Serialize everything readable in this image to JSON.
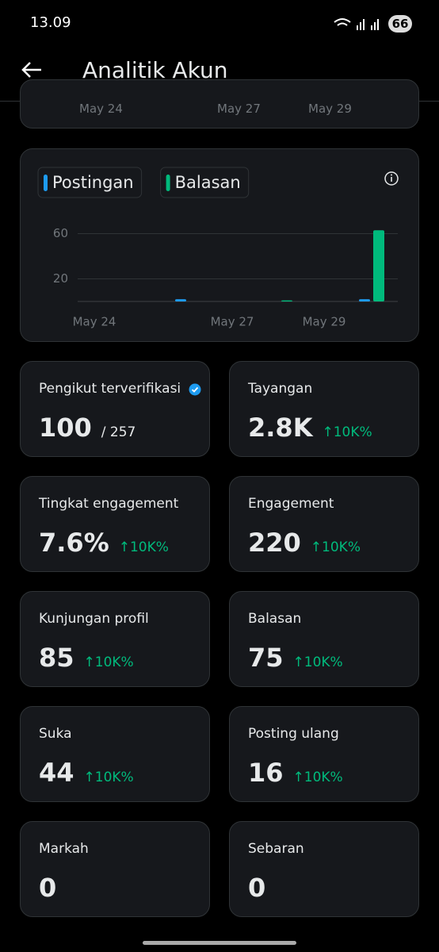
{
  "status_bar": {
    "time": "13.09",
    "battery": "66"
  },
  "header": {
    "title": "Analitik Akun"
  },
  "previous_chart": {
    "x_labels": [
      "May 24",
      "May 27",
      "May 29"
    ]
  },
  "chart_data": {
    "type": "bar",
    "categories": [
      "May 24",
      null,
      null,
      "May 27",
      null,
      "May 29",
      null
    ],
    "series": [
      {
        "name": "Postingan",
        "color": "#1d9bf0",
        "values": [
          0,
          0,
          2,
          0,
          0,
          0,
          2
        ]
      },
      {
        "name": "Balasan",
        "color": "#00ba7c",
        "values": [
          0,
          0,
          0,
          0,
          1,
          0,
          63
        ]
      }
    ],
    "ylim": [
      0,
      66
    ],
    "yticks": [
      20,
      60
    ],
    "grid": true
  },
  "stats": [
    {
      "label": "Pengikut terverifikasi",
      "value": "100",
      "total": "/ 257"
    },
    {
      "label": "Tayangan",
      "value": "2.8K",
      "change": "↑10K%"
    },
    {
      "label": "Tingkat engagement",
      "value": "7.6%",
      "change": "↑10K%"
    },
    {
      "label": "Engagement",
      "value": "220",
      "change": "↑10K%"
    },
    {
      "label": "Kunjungan profil",
      "value": "85",
      "change": "↑10K%"
    },
    {
      "label": "Balasan",
      "value": "75",
      "change": "↑10K%"
    },
    {
      "label": "Suka",
      "value": "44",
      "change": "↑10K%"
    },
    {
      "label": "Posting ulang",
      "value": "16",
      "change": "↑10K%"
    },
    {
      "label": "Markah",
      "value": "0"
    },
    {
      "label": "Sebaran",
      "value": "0"
    }
  ]
}
